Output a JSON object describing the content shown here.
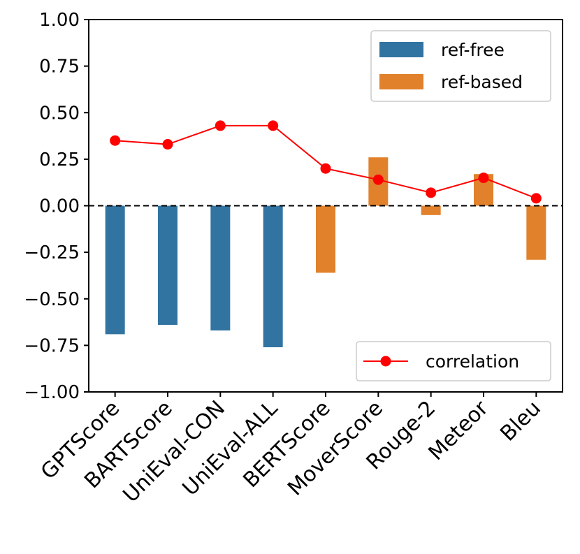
{
  "chart_data": {
    "type": "bar",
    "categories": [
      "GPTScore",
      "BARTScore",
      "UniEval-CON",
      "UniEval-ALL",
      "BERTScore",
      "MoverScore",
      "Rouge-2",
      "Meteor",
      "Bleu"
    ],
    "groups": [
      "ref-free",
      "ref-free",
      "ref-free",
      "ref-free",
      "ref-based",
      "ref-based",
      "ref-based",
      "ref-based",
      "ref-based"
    ],
    "series": [
      {
        "name": "ref-free",
        "color": "#3274a1",
        "values": [
          -0.69,
          -0.64,
          -0.67,
          -0.76,
          null,
          null,
          null,
          null,
          null
        ]
      },
      {
        "name": "ref-based",
        "color": "#e1812c",
        "values": [
          null,
          null,
          null,
          null,
          -0.36,
          0.26,
          -0.05,
          0.17,
          -0.29
        ]
      }
    ],
    "line_series": {
      "name": "correlation",
      "color": "#ff0000",
      "values": [
        0.35,
        0.33,
        0.43,
        0.43,
        0.2,
        0.14,
        0.07,
        0.15,
        0.04
      ]
    },
    "reference_line": 0.0,
    "ylim": [
      -1.0,
      1.0
    ],
    "yticks": [
      1.0,
      0.75,
      0.5,
      0.25,
      0.0,
      -0.25,
      -0.5,
      -0.75,
      -1.0
    ],
    "ytick_labels": [
      "1.00",
      "0.75",
      "0.50",
      "0.25",
      "0.00",
      "−0.25",
      "−0.50",
      "−0.75",
      "−1.00"
    ],
    "title": "",
    "xlabel": "",
    "ylabel": "",
    "legends": [
      {
        "placement": "top-right",
        "entries": [
          "ref-free",
          "ref-based"
        ]
      },
      {
        "placement": "bottom-right",
        "entries": [
          "correlation"
        ]
      }
    ]
  }
}
